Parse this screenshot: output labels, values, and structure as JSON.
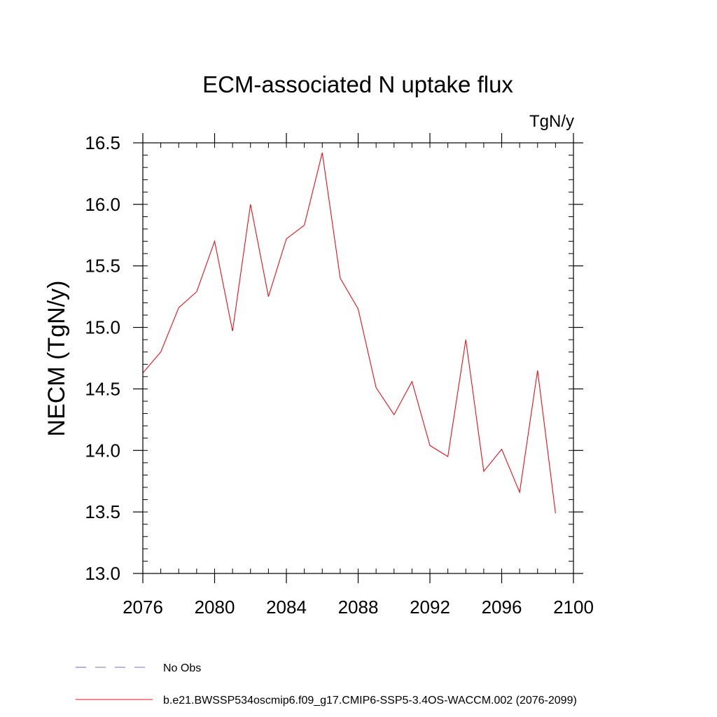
{
  "chart_data": {
    "type": "line",
    "title": "ECM-associated N uptake flux",
    "units_label": "TgN/y",
    "ylabel": "NECM  (TgN/y)",
    "xlabel": "",
    "xlim": [
      2076,
      2100
    ],
    "ylim": [
      13.0,
      16.5
    ],
    "x_ticks": [
      2076,
      2080,
      2084,
      2088,
      2092,
      2096,
      2100
    ],
    "x_minor_step": 1,
    "y_ticks": [
      13.0,
      13.5,
      14.0,
      14.5,
      15.0,
      15.5,
      16.0,
      16.5
    ],
    "y_minor_step": 0.1,
    "series": [
      {
        "name": "b.e21.BWSSP534oscmip6.f09_g17.CMIP6-SSP5-3.4OS-WACCM.002 (2076-2099)",
        "color": "#e8101a",
        "x": [
          2076,
          2077,
          2078,
          2079,
          2080,
          2081,
          2082,
          2083,
          2084,
          2085,
          2086,
          2087,
          2088,
          2089,
          2090,
          2091,
          2092,
          2093,
          2094,
          2095,
          2096,
          2097,
          2098,
          2099
        ],
        "values": [
          14.63,
          14.8,
          15.16,
          15.29,
          15.7,
          14.97,
          16.0,
          15.25,
          15.72,
          15.83,
          16.42,
          15.4,
          15.15,
          14.51,
          14.29,
          14.56,
          14.04,
          13.95,
          14.9,
          13.83,
          14.01,
          13.66,
          14.65,
          13.49
        ]
      }
    ],
    "legend": [
      {
        "label": "No Obs",
        "style": "dashed",
        "color": "#7b6fb8"
      },
      {
        "label": "b.e21.BWSSP534oscmip6.f09_g17.CMIP6-SSP5-3.4OS-WACCM.002 (2076-2099)",
        "style": "solid",
        "color": "#e8101a"
      }
    ],
    "legend_position": "bottom-left"
  }
}
